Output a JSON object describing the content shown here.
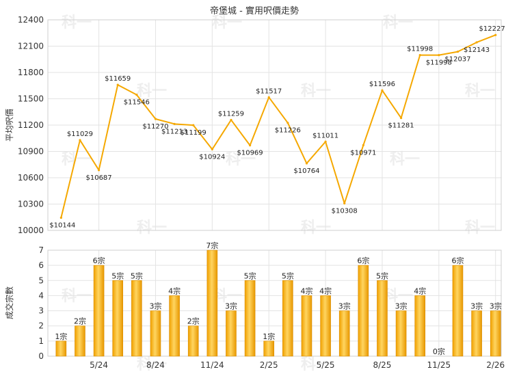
{
  "chart_data": [
    {
      "type": "line",
      "title": "帝堡城 - 實用呎價走勢",
      "ylabel": "平均呎價",
      "ylim": [
        10000,
        12400
      ],
      "yticks": [
        10000,
        10300,
        10600,
        10900,
        11200,
        11500,
        11800,
        12100,
        12400
      ],
      "color": "#f5a800",
      "values": [
        10144,
        11029,
        10687,
        11659,
        11546,
        11270,
        11213,
        11199,
        10924,
        11259,
        10969,
        11517,
        11226,
        10764,
        11011,
        10308,
        10971,
        11596,
        11281,
        11998,
        11998,
        12037,
        12143,
        12227
      ],
      "labels": [
        "$10144",
        "$11029",
        "$10687",
        "$11659",
        "$11546",
        "$11270",
        "$11213",
        "$11199",
        "$10924",
        "$11259",
        "$10969",
        "$11517",
        "$11226",
        "$10764",
        "$11011",
        "$10308",
        "$10971",
        "$11596",
        "$11281",
        "$11998",
        "$11998",
        "$12037",
        "$12143",
        "$12227"
      ]
    },
    {
      "type": "bar",
      "ylabel": "成交宗數",
      "ylim": [
        0,
        7
      ],
      "yticks": [
        0,
        1,
        2,
        3,
        4,
        5,
        6,
        7
      ],
      "color": "#f5a800",
      "categories": [
        "5/24",
        "8/24",
        "11/24",
        "2/25",
        "5/25",
        "8/25",
        "11/25",
        "2/26"
      ],
      "values": [
        1,
        2,
        6,
        5,
        5,
        3,
        4,
        2,
        7,
        3,
        5,
        1,
        5,
        4,
        4,
        3,
        6,
        5,
        3,
        4,
        0,
        6,
        3,
        3
      ],
      "labels": [
        "1宗",
        "2宗",
        "6宗",
        "5宗",
        "5宗",
        "3宗",
        "4宗",
        "2宗",
        "7宗",
        "3宗",
        "5宗",
        "1宗",
        "5宗",
        "4宗",
        "4宗",
        "3宗",
        "6宗",
        "5宗",
        "3宗",
        "4宗",
        "0宗",
        "6宗",
        "3宗",
        "3宗"
      ]
    }
  ],
  "watermark": "科一"
}
